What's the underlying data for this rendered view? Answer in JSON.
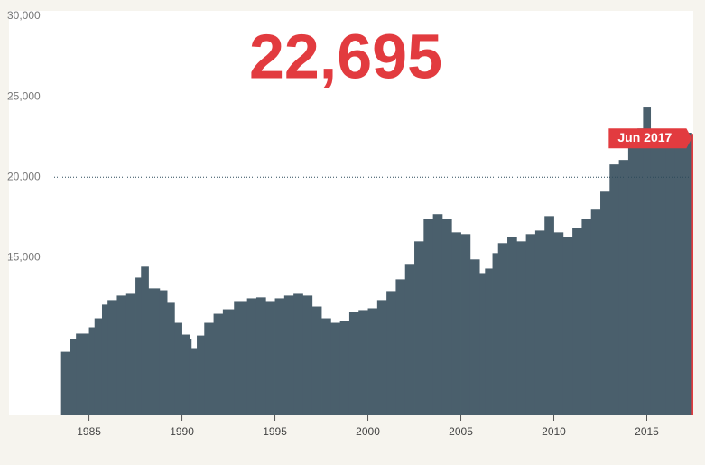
{
  "chart_data": {
    "type": "bar",
    "headline": "22,695",
    "highlight_label": "Jun 2017",
    "color": "#4a5f6c",
    "highlight_color": "#e23b3f",
    "reference_line": 20000,
    "x": [
      1983.5,
      1984.0,
      1984.3,
      1985.0,
      1985.3,
      1985.7,
      1986.0,
      1986.5,
      1987.0,
      1987.5,
      1987.8,
      1988.2,
      1988.8,
      1989.2,
      1989.6,
      1990.0,
      1990.4,
      1990.5,
      1990.8,
      1991.2,
      1991.7,
      1992.2,
      1992.8,
      1993.5,
      1994.0,
      1994.5,
      1995.0,
      1995.5,
      1996.0,
      1996.5,
      1997.0,
      1997.5,
      1998.0,
      1998.5,
      1999.0,
      1999.5,
      2000.0,
      2000.5,
      2001.0,
      2001.5,
      2002.0,
      2002.5,
      2003.0,
      2003.5,
      2004.0,
      2004.5,
      2005.0,
      2005.5,
      2006.0,
      2006.3,
      2006.7,
      2007.0,
      2007.5,
      2008.0,
      2008.5,
      2009.0,
      2009.5,
      2010.0,
      2010.5,
      2011.0,
      2011.5,
      2012.0,
      2012.5,
      2013.0,
      2013.5,
      2014.0,
      2014.5,
      2014.8,
      2015.2,
      2015.6,
      2016.0,
      2016.5,
      2017.0,
      2017.42
    ],
    "values": [
      9150,
      9940,
      10280,
      10670,
      11230,
      12080,
      12360,
      12640,
      12750,
      13760,
      14440,
      13090,
      12970,
      12190,
      10950,
      10220,
      9940,
      9380,
      10160,
      10950,
      11510,
      11790,
      12300,
      12470,
      12530,
      12300,
      12470,
      12640,
      12750,
      12640,
      11960,
      11230,
      10950,
      11060,
      11620,
      11740,
      11850,
      12360,
      12920,
      13650,
      14610,
      16010,
      17410,
      17700,
      17410,
      16570,
      16460,
      14890,
      14040,
      14320,
      15280,
      15900,
      16290,
      16010,
      16460,
      16680,
      17580,
      16570,
      16290,
      16850,
      17410,
      17980,
      19100,
      20790,
      21070,
      22190,
      23030,
      24330,
      22870,
      22760,
      22300,
      22980,
      22760,
      22695
    ],
    "xlim": [
      1980.7,
      2017.5
    ],
    "ylim": [
      5200,
      30000
    ],
    "xticks": [
      1985,
      1990,
      1995,
      2000,
      2005,
      2010,
      2015
    ],
    "yticks": [
      {
        "value": 15000,
        "label": "15,000"
      },
      {
        "value": 20000,
        "label": "20,000"
      },
      {
        "value": 25000,
        "label": "25,000"
      },
      {
        "value": 30000,
        "label": "30,000"
      }
    ]
  }
}
